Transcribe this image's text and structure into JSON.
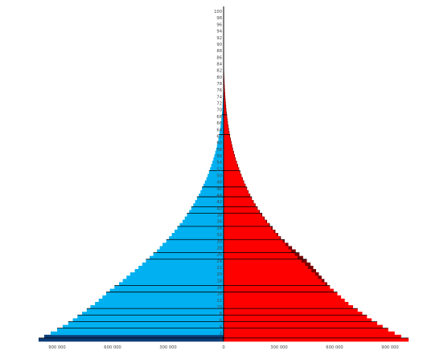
{
  "chart_data": {
    "type": "bar",
    "orientation": "horizontal",
    "layout": "population-pyramid",
    "title": "",
    "xlabel": "",
    "ylabel": "",
    "xlim": [
      -1000000,
      1000000
    ],
    "ylim": [
      0,
      101
    ],
    "grid": false,
    "legend": "none",
    "colors": {
      "left": "#00b0f0",
      "right": "#ff0000",
      "right_excess": "#7a0000",
      "outline": "#000000",
      "left_dark": "#0c3c78"
    },
    "x_tick_values": [
      -900000,
      -600000,
      -300000,
      0,
      300000,
      600000,
      900000
    ],
    "x_tick_labels": [
      "900 000",
      "600 000",
      "300 000",
      "0",
      "300 000",
      "600 000",
      "900 000"
    ],
    "y_tick_labels": [
      "0",
      "2",
      "4",
      "6",
      "8",
      "10",
      "12",
      "14",
      "16",
      "18",
      "20",
      "22",
      "24",
      "26",
      "28",
      "30",
      "32",
      "34",
      "36",
      "38",
      "40",
      "42",
      "44",
      "46",
      "48",
      "50",
      "52",
      "54",
      "56",
      "58",
      "60",
      "62",
      "64",
      "66",
      "68",
      "70",
      "72",
      "74",
      "76",
      "78",
      "80",
      "82",
      "84",
      "86",
      "88",
      "90",
      "92",
      "94",
      "96",
      "98",
      "100"
    ],
    "categories": [
      "0",
      "1",
      "2",
      "3",
      "4",
      "5",
      "6",
      "7",
      "8",
      "9",
      "10",
      "11",
      "12",
      "13",
      "14",
      "15",
      "16",
      "17",
      "18",
      "19",
      "20",
      "21",
      "22",
      "23",
      "24",
      "25",
      "26",
      "27",
      "28",
      "29",
      "30",
      "31",
      "32",
      "33",
      "34",
      "35",
      "36",
      "37",
      "38",
      "39",
      "40",
      "41",
      "42",
      "43",
      "44",
      "45",
      "46",
      "47",
      "48",
      "49",
      "50",
      "51",
      "52",
      "53",
      "54",
      "55",
      "56",
      "57",
      "58",
      "59",
      "60",
      "61",
      "62",
      "63",
      "64",
      "65",
      "66",
      "67",
      "68",
      "69",
      "70",
      "71",
      "72",
      "73",
      "74",
      "75",
      "76",
      "77",
      "78",
      "79",
      "80",
      "81",
      "82",
      "83",
      "84",
      "85",
      "86",
      "87",
      "88",
      "89",
      "90",
      "91",
      "92",
      "93",
      "94",
      "95",
      "96",
      "97",
      "98",
      "99",
      "100"
    ],
    "series": [
      {
        "values": [
          -1000000,
          -970000,
          -935000,
          -900000,
          -870000,
          -840000,
          -815000,
          -790000,
          -765000,
          -740000,
          -720000,
          -695000,
          -675000,
          -655000,
          -635000,
          -615000,
          -590000,
          -565000,
          -545000,
          -525000,
          -505000,
          -480000,
          -460000,
          -440000,
          -420000,
          -400000,
          -380000,
          -360000,
          -345000,
          -330000,
          -310000,
          -295000,
          -280000,
          -265000,
          -250000,
          -237000,
          -222000,
          -210000,
          -198000,
          -186000,
          -175000,
          -164000,
          -154000,
          -144000,
          -134000,
          -125000,
          -117000,
          -109000,
          -101000,
          -93000,
          -86000,
          -79000,
          -73000,
          -67000,
          -61000,
          -55000,
          -50000,
          -45000,
          -40000,
          -36000,
          -32000,
          -28000,
          -25000,
          -22000,
          -19000,
          -16500,
          -14000,
          -12000,
          -10000,
          -8500,
          -7000,
          -6000,
          -5000,
          -4200,
          -3500,
          -2800,
          -2200,
          -1800,
          -1400,
          -1100,
          -900,
          -700,
          -550,
          -420,
          -320,
          -250,
          -190,
          -140,
          -100,
          -70,
          -50,
          -35,
          -25,
          -16,
          -10,
          -6,
          -4,
          -2,
          -1,
          0,
          0
        ]
      },
      {
        "values": [
          1000000,
          960000,
          925000,
          890000,
          860000,
          830000,
          800000,
          775000,
          750000,
          725000,
          700000,
          675000,
          655000,
          635000,
          615000,
          595000,
          575000,
          550000,
          530000,
          510000,
          495000,
          475000,
          455000,
          440000,
          420000,
          400000,
          385000,
          365000,
          350000,
          335000,
          320000,
          303000,
          287000,
          272000,
          257000,
          243000,
          229000,
          216000,
          203000,
          191000,
          180000,
          169000,
          159000,
          150000,
          141000,
          132000,
          124000,
          116000,
          108000,
          101000,
          94000,
          87000,
          81000,
          75000,
          69000,
          63000,
          58000,
          53000,
          48000,
          44000,
          40000,
          36000,
          32000,
          29000,
          26000,
          23000,
          20500,
          18000,
          16000,
          14000,
          12000,
          10500,
          9000,
          7700,
          6500,
          5500,
          4600,
          3800,
          3100,
          2500,
          2000,
          1600,
          1250,
          950,
          720,
          540,
          400,
          290,
          210,
          150,
          105,
          72,
          48,
          32,
          21,
          13,
          8,
          5,
          3,
          1,
          0
        ]
      },
      {
        "values": [
          1000000,
          960000,
          925000,
          890000,
          860000,
          830000,
          800000,
          775000,
          750000,
          725000,
          700000,
          675000,
          655000,
          635000,
          615000,
          595000,
          575000,
          560000,
          545000,
          530000,
          515000,
          500000,
          485000,
          470000,
          450000,
          430000,
          410000,
          390000,
          370000,
          350000,
          330000,
          310000,
          295000,
          280000,
          265000,
          250000,
          235000,
          222000,
          209000,
          196000,
          184000,
          173000,
          163000,
          153000,
          144000,
          135000,
          127000,
          119000,
          111000,
          104000,
          97000,
          90000,
          84000,
          78000,
          72000,
          66000,
          61000,
          56000,
          51000,
          47000,
          43000,
          39000,
          35000,
          32000,
          29000,
          26000,
          23500,
          21000,
          19000,
          17000,
          15000,
          13500,
          12000,
          10500,
          9200,
          8000,
          6900,
          5900,
          5000,
          4200,
          3500,
          2900,
          2400,
          1950,
          1550,
          1200,
          920,
          700,
          520,
          380,
          270,
          190,
          130,
          86,
          56,
          36,
          22,
          13,
          8,
          4,
          2
        ]
      }
    ]
  }
}
